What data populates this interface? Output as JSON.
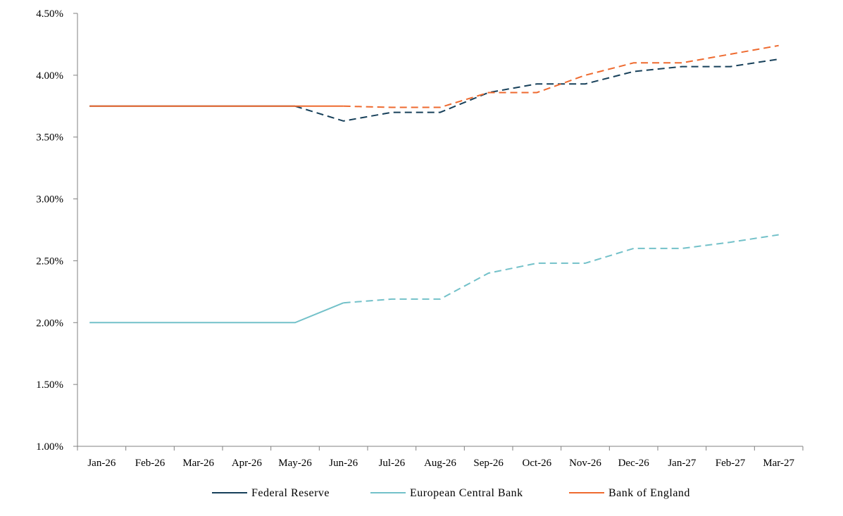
{
  "chart_data": {
    "type": "line",
    "title": "",
    "xlabel": "",
    "ylabel": "",
    "categories": [
      "Jan-26",
      "Feb-26",
      "Mar-26",
      "Apr-26",
      "May-26",
      "Jun-26",
      "Jul-26",
      "Aug-26",
      "Sep-26",
      "Oct-26",
      "Nov-26",
      "Dec-26",
      "Jan-27",
      "Feb-27",
      "Mar-27"
    ],
    "ylim": [
      1.0,
      4.5
    ],
    "yticks": [
      1.0,
      1.5,
      2.0,
      2.5,
      3.0,
      3.5,
      4.0,
      4.5
    ],
    "ytick_labels": [
      "1.00%",
      "1.50%",
      "2.00%",
      "2.50%",
      "3.00%",
      "3.50%",
      "4.00%",
      "4.50%"
    ],
    "grid": false,
    "legend_position": "bottom",
    "series": [
      {
        "name": "Federal Reserve",
        "color": "#17405a",
        "style_note": "solid through May-26, dashed thereafter",
        "x": [
          0.25,
          4.5,
          5.5,
          6.5,
          7.5,
          8.5,
          9.5,
          10.5,
          11.5,
          12.5,
          13.5,
          14.5
        ],
        "values": [
          3.75,
          3.75,
          3.63,
          3.7,
          3.7,
          3.86,
          3.93,
          3.93,
          4.03,
          4.07,
          4.07,
          4.13
        ],
        "solid_until_index": 1
      },
      {
        "name": "European Central Bank",
        "color": "#73c1c9",
        "style_note": "solid through Jun-26, dashed thereafter",
        "x": [
          0.25,
          4.5,
          5.5,
          6.5,
          7.5,
          8.5,
          9.5,
          10.5,
          11.5,
          12.5,
          13.5,
          14.5
        ],
        "values": [
          2.0,
          2.0,
          2.16,
          2.19,
          2.19,
          2.4,
          2.48,
          2.48,
          2.6,
          2.6,
          2.65,
          2.71
        ],
        "solid_until_index": 2
      },
      {
        "name": "Bank of England",
        "color": "#ee6a2f",
        "style_note": "solid through Jun-26, dashed thereafter",
        "x": [
          0.25,
          4.5,
          5.5,
          6.5,
          7.5,
          8.5,
          9.5,
          10.5,
          11.5,
          12.5,
          13.5,
          14.5
        ],
        "values": [
          3.75,
          3.75,
          3.75,
          3.74,
          3.74,
          3.86,
          3.86,
          4.0,
          4.1,
          4.1,
          4.17,
          4.24
        ],
        "solid_until_index": 2
      }
    ]
  }
}
